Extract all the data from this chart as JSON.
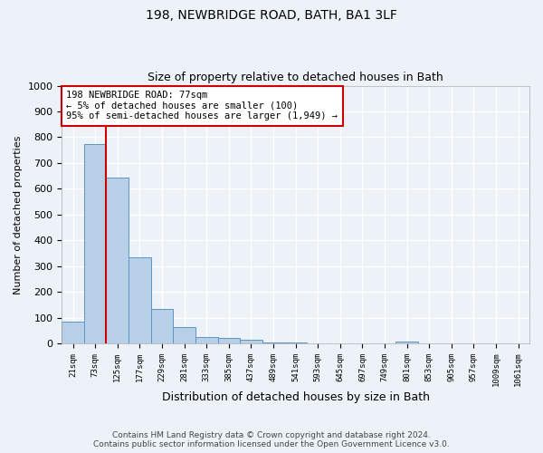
{
  "title1": "198, NEWBRIDGE ROAD, BATH, BA1 3LF",
  "title2": "Size of property relative to detached houses in Bath",
  "xlabel": "Distribution of detached houses by size in Bath",
  "ylabel": "Number of detached properties",
  "annotation_line1": "198 NEWBRIDGE ROAD: 77sqm",
  "annotation_line2": "← 5% of detached houses are smaller (100)",
  "annotation_line3": "95% of semi-detached houses are larger (1,949) →",
  "footer1": "Contains HM Land Registry data © Crown copyright and database right 2024.",
  "footer2": "Contains public sector information licensed under the Open Government Licence v3.0.",
  "bar_labels": [
    "21sqm",
    "73sqm",
    "125sqm",
    "177sqm",
    "229sqm",
    "281sqm",
    "333sqm",
    "385sqm",
    "437sqm",
    "489sqm",
    "541sqm",
    "593sqm",
    "645sqm",
    "697sqm",
    "749sqm",
    "801sqm",
    "853sqm",
    "905sqm",
    "957sqm",
    "1009sqm",
    "1061sqm"
  ],
  "bar_values": [
    85,
    775,
    645,
    335,
    135,
    65,
    25,
    20,
    15,
    5,
    5,
    0,
    0,
    0,
    0,
    8,
    0,
    0,
    0,
    0,
    0
  ],
  "bar_color": "#b8cfe8",
  "bar_edge_color": "#5b96c8",
  "vline_x": 1.5,
  "vline_color": "#cc0000",
  "annotation_box_color": "#cc0000",
  "ylim": [
    0,
    1000
  ],
  "yticks": [
    0,
    100,
    200,
    300,
    400,
    500,
    600,
    700,
    800,
    900,
    1000
  ],
  "bg_color": "#edf2f9",
  "grid_color": "#ffffff",
  "spine_color": "#aaaaaa"
}
